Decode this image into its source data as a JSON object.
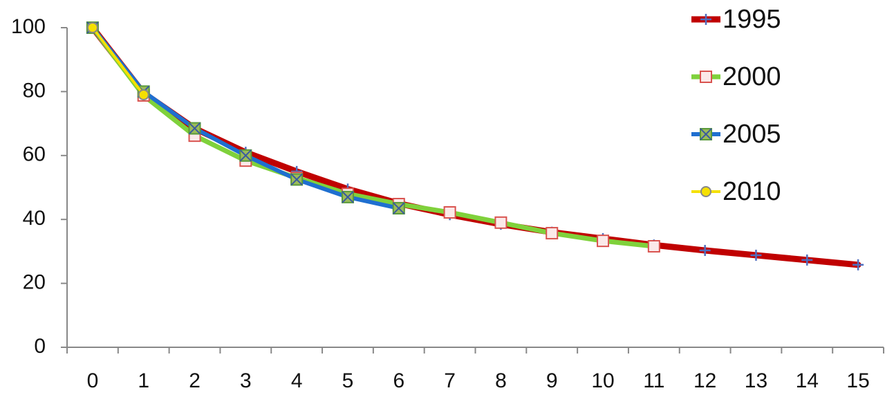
{
  "chart_data": {
    "type": "line",
    "categories": [
      "0",
      "1",
      "2",
      "3",
      "4",
      "5",
      "6",
      "7",
      "8",
      "9",
      "10",
      "11",
      "12",
      "13",
      "14",
      "15"
    ],
    "series": [
      {
        "name": "1995",
        "color": "#c00000",
        "marker": "plus",
        "marker_color": "#4f6fc0",
        "values": [
          100,
          79.5,
          68.5,
          61,
          55,
          49.5,
          45,
          41.5,
          38.5,
          36,
          34,
          32,
          30.3,
          28.8,
          27.3,
          25.8
        ]
      },
      {
        "name": "2000",
        "color": "#7fd13b",
        "marker": "square",
        "marker_color": "#d9534f",
        "values": [
          100,
          78.8,
          66.2,
          58.4,
          53,
          48,
          44.8,
          42.2,
          39,
          35.7,
          33.3,
          31.6,
          null,
          null,
          null,
          null
        ]
      },
      {
        "name": "2005",
        "color": "#1f6fd0",
        "marker": "xsquare",
        "marker_color": "#5a9a3a",
        "values": [
          100,
          80,
          68.5,
          60,
          52.5,
          47,
          43.5,
          null,
          null,
          null,
          null,
          null,
          null,
          null,
          null,
          null
        ]
      },
      {
        "name": "2010",
        "color": "#f5e000",
        "marker": "circle",
        "marker_color": "#f5e000",
        "values": [
          100,
          79,
          null,
          null,
          null,
          null,
          null,
          null,
          null,
          null,
          null,
          null,
          null,
          null,
          null,
          null
        ]
      }
    ],
    "ylim": [
      0,
      100
    ],
    "yticks": [
      0,
      20,
      40,
      60,
      80,
      100
    ],
    "grid": false,
    "legend": "top-right"
  }
}
